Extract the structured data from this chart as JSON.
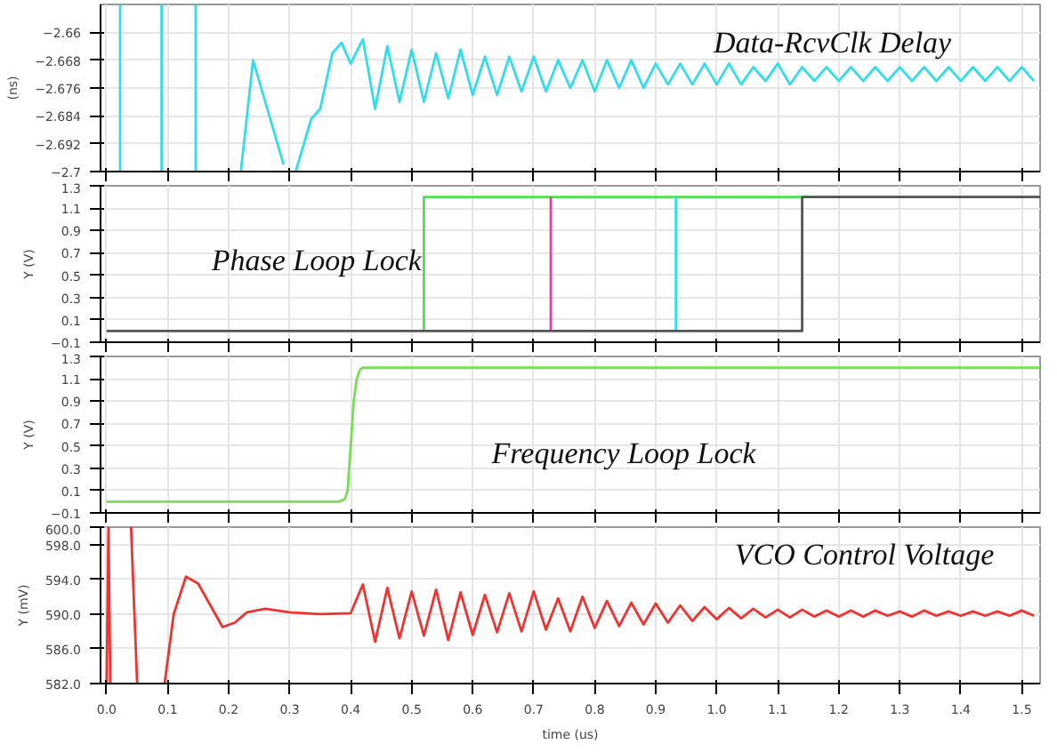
{
  "chart_data": [
    {
      "type": "line",
      "title": "Data-RcvClk Delay",
      "ylabel": "(ns)",
      "xlim": [
        -0.01,
        1.53
      ],
      "xticks": [
        0,
        0.1,
        0.2,
        0.3,
        0.4,
        0.5,
        0.6,
        0.7,
        0.8,
        0.9,
        1,
        1.1,
        1.2,
        1.3,
        1.4,
        1.5
      ],
      "ylim": [
        -2.7,
        -2.652
      ],
      "yticks": [
        -2.66,
        -2.668,
        -2.676,
        -2.684,
        -2.692,
        -2.7
      ],
      "grid": true,
      "tick_labels": "y",
      "series": [
        {
          "color": "#33dde8",
          "x": [
            0.022,
            0.022
          ],
          "values": [
            -2.652,
            -2.7
          ]
        },
        {
          "color": "#33dde8",
          "x": [
            0.09,
            0.09
          ],
          "values": [
            -2.652,
            -2.7
          ]
        },
        {
          "color": "#33dde8",
          "x": [
            0.146,
            0.146
          ],
          "values": [
            -2.652,
            -2.7
          ]
        },
        {
          "color": "#33dde8",
          "x": [
            0.22,
            0.24,
            0.26,
            0.28,
            0.29
          ],
          "values": [
            -2.7,
            -2.668,
            -2.68,
            -2.692,
            -2.698
          ]
        },
        {
          "color": "#33dde8",
          "x": [
            0.31,
            0.335,
            0.35,
            0.37,
            0.385,
            0.4,
            0.42,
            0.44,
            0.46,
            0.48,
            0.5,
            0.52,
            0.54,
            0.56,
            0.58,
            0.6,
            0.62,
            0.64,
            0.66,
            0.68,
            0.7,
            0.72,
            0.74,
            0.76,
            0.78,
            0.8,
            0.82,
            0.84,
            0.86,
            0.88,
            0.9,
            0.92,
            0.94,
            0.96,
            0.98,
            1.0,
            1.02,
            1.04,
            1.06,
            1.08,
            1.1,
            1.12,
            1.14,
            1.16,
            1.18,
            1.2,
            1.22,
            1.24,
            1.26,
            1.28,
            1.3,
            1.32,
            1.34,
            1.36,
            1.38,
            1.4,
            1.42,
            1.44,
            1.46,
            1.48,
            1.5,
            1.52
          ],
          "values": [
            -2.7,
            -2.685,
            -2.682,
            -2.666,
            -2.663,
            -2.669,
            -2.662,
            -2.682,
            -2.664,
            -2.68,
            -2.665,
            -2.68,
            -2.666,
            -2.679,
            -2.665,
            -2.678,
            -2.667,
            -2.678,
            -2.667,
            -2.677,
            -2.667,
            -2.677,
            -2.668,
            -2.676,
            -2.668,
            -2.677,
            -2.668,
            -2.676,
            -2.668,
            -2.676,
            -2.669,
            -2.675,
            -2.669,
            -2.675,
            -2.669,
            -2.675,
            -2.669,
            -2.675,
            -2.67,
            -2.674,
            -2.669,
            -2.675,
            -2.67,
            -2.674,
            -2.67,
            -2.674,
            -2.67,
            -2.674,
            -2.67,
            -2.674,
            -2.67,
            -2.674,
            -2.67,
            -2.674,
            -2.67,
            -2.674,
            -2.67,
            -2.674,
            -2.67,
            -2.674,
            -2.67,
            -2.674
          ]
        }
      ]
    },
    {
      "type": "line",
      "title": "Phase Loop Lock",
      "ylabel": "Y (V)",
      "xlim": [
        -0.01,
        1.53
      ],
      "xticks": [
        0,
        0.1,
        0.2,
        0.3,
        0.4,
        0.5,
        0.6,
        0.7,
        0.8,
        0.9,
        1,
        1.1,
        1.2,
        1.3,
        1.4,
        1.5
      ],
      "ylim": [
        -0.1,
        1.3
      ],
      "yticks": [
        -0.1,
        0.1,
        0.3,
        0.5,
        0.7,
        0.9,
        1.1,
        1.3
      ],
      "grid": true,
      "tick_labels": "y",
      "series": [
        {
          "color": "#55dd55",
          "x": [
            0.52,
            0.52,
            1.53
          ],
          "values": [
            0,
            1.2,
            1.2
          ]
        },
        {
          "color": "#e0409a",
          "x": [
            0.728,
            0.728
          ],
          "values": [
            0,
            1.2
          ]
        },
        {
          "color": "#33dde8",
          "x": [
            0.933,
            0.933
          ],
          "values": [
            0,
            1.2
          ]
        },
        {
          "color": "#555555",
          "x": [
            0.0,
            1.14,
            1.14,
            1.53
          ],
          "values": [
            0,
            0,
            1.2,
            1.2
          ]
        }
      ]
    },
    {
      "type": "line",
      "title": "Frequency Loop Lock",
      "ylabel": "Y (V)",
      "xlim": [
        -0.01,
        1.53
      ],
      "xticks": [
        0,
        0.1,
        0.2,
        0.3,
        0.4,
        0.5,
        0.6,
        0.7,
        0.8,
        0.9,
        1,
        1.1,
        1.2,
        1.3,
        1.4,
        1.5
      ],
      "ylim": [
        -0.1,
        1.3
      ],
      "yticks": [
        -0.1,
        0.1,
        0.3,
        0.5,
        0.7,
        0.9,
        1.1,
        1.3
      ],
      "grid": true,
      "tick_labels": "y",
      "series": [
        {
          "color": "#77dd55",
          "x": [
            0.0,
            0.38,
            0.39,
            0.395,
            0.4,
            0.405,
            0.41,
            0.415,
            0.42,
            1.53
          ],
          "values": [
            0,
            0,
            0.02,
            0.1,
            0.5,
            0.9,
            1.1,
            1.18,
            1.2,
            1.2
          ]
        }
      ]
    },
    {
      "type": "line",
      "title": "VCO Control Voltage",
      "ylabel": "Y (mV)",
      "xlabel": "time (us)",
      "xlim": [
        -0.01,
        1.53
      ],
      "xticks": [
        {
          "value": 0,
          "label": "0.0"
        },
        0.1,
        0.2,
        0.3,
        0.4,
        0.5,
        0.6,
        0.7,
        0.8,
        0.9,
        {
          "value": 1,
          "label": "1.0"
        },
        1.1,
        1.2,
        1.3,
        1.4,
        1.5
      ],
      "ylim": [
        582,
        600
      ],
      "yticks": [
        {
          "value": 582,
          "label": "582.0"
        },
        {
          "value": 586,
          "label": "586.0"
        },
        {
          "value": 590,
          "label": "590.0"
        },
        {
          "value": 594,
          "label": "594.0"
        },
        {
          "value": 598,
          "label": "598.0"
        },
        {
          "value": 600,
          "label": "600.0"
        }
      ],
      "grid": true,
      "series": [
        {
          "color": "#ee3333",
          "x": [
            0.0,
            0.003,
            0.006
          ],
          "values": [
            582,
            600,
            582
          ]
        },
        {
          "color": "#ee3333",
          "x": [
            0.04,
            0.05
          ],
          "values": [
            600,
            582
          ]
        },
        {
          "color": "#ee3333",
          "x": [
            0.095,
            0.11,
            0.13,
            0.15,
            0.17,
            0.19,
            0.21,
            0.23,
            0.26,
            0.3,
            0.35,
            0.4,
            0.42,
            0.44,
            0.46,
            0.48,
            0.5,
            0.52,
            0.54,
            0.56,
            0.58,
            0.6,
            0.62,
            0.64,
            0.66,
            0.68,
            0.7,
            0.72,
            0.74,
            0.76,
            0.78,
            0.8,
            0.82,
            0.84,
            0.86,
            0.88,
            0.9,
            0.92,
            0.94,
            0.96,
            0.98,
            1.0,
            1.02,
            1.04,
            1.06,
            1.08,
            1.1,
            1.12,
            1.14,
            1.16,
            1.18,
            1.2,
            1.22,
            1.24,
            1.26,
            1.28,
            1.3,
            1.32,
            1.34,
            1.36,
            1.38,
            1.4,
            1.42,
            1.44,
            1.46,
            1.48,
            1.5,
            1.52
          ],
          "values": [
            582,
            590,
            594.3,
            593.5,
            591,
            588.5,
            589,
            590.2,
            590.6,
            590.2,
            590,
            590.1,
            593.4,
            586.8,
            593,
            587.2,
            592.6,
            587.5,
            592.8,
            587,
            592.5,
            587.6,
            592.2,
            587.9,
            592.4,
            588,
            592.6,
            588.2,
            591.8,
            588,
            592,
            588.4,
            591.5,
            588.6,
            591.3,
            588.8,
            591.2,
            589,
            591,
            589.2,
            590.8,
            589.4,
            590.7,
            589.5,
            590.6,
            589.6,
            590.5,
            589.6,
            590.5,
            589.7,
            590.4,
            589.7,
            590.4,
            589.7,
            590.4,
            589.8,
            590.3,
            589.7,
            590.4,
            589.8,
            590.3,
            589.8,
            590.3,
            589.8,
            590.3,
            589.8,
            590.4,
            589.8
          ]
        }
      ]
    }
  ]
}
